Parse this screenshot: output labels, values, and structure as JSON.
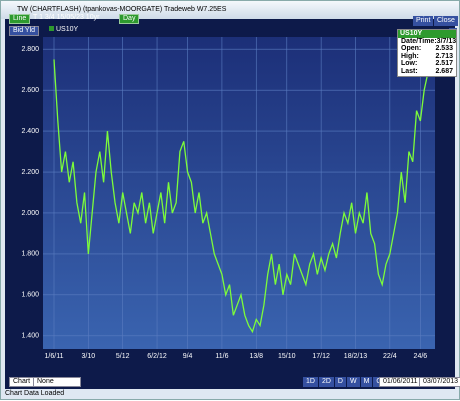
{
  "window": {
    "title": "TW (CHARTFLASH) (tpankovas-MOORGATE) Tradeweb W7.25ES"
  },
  "toolbar": {
    "style": "Line",
    "instrument": "T 1 3/4 15/05/23 10yr",
    "period": "Day",
    "print": "Print",
    "close": "Close",
    "help": "?",
    "field": "Bid Yld"
  },
  "info": {
    "title": "US10Y",
    "rows": [
      {
        "label": "Date/Time:",
        "value": "3/7/13"
      },
      {
        "label": "Open:",
        "value": "2.533"
      },
      {
        "label": "High:",
        "value": "2.713"
      },
      {
        "label": "Low:",
        "value": "2.517"
      },
      {
        "label": "Last:",
        "value": "2.687"
      }
    ]
  },
  "bottom": {
    "chart": "Chart",
    "overlay": "None",
    "buttons": [
      "1D",
      "2D",
      "D",
      "W",
      "M",
      "Q"
    ],
    "from": "01/06/2011",
    "to": "03/07/2013"
  },
  "status": "Chart Data Loaded",
  "chart_data": {
    "type": "line",
    "series": [
      {
        "name": "US10Y",
        "color": "#7CFC3A",
        "values": [
          2.75,
          2.45,
          2.2,
          2.3,
          2.15,
          2.25,
          2.05,
          1.95,
          2.1,
          1.8,
          2.0,
          2.2,
          2.3,
          2.15,
          2.4,
          2.2,
          2.05,
          1.95,
          2.1,
          2.0,
          1.9,
          2.05,
          2.0,
          2.1,
          1.95,
          2.05,
          1.9,
          2.0,
          2.1,
          1.95,
          2.15,
          2.0,
          2.05,
          2.3,
          2.35,
          2.2,
          2.15,
          2.0,
          2.1,
          1.95,
          2.0,
          1.9,
          1.8,
          1.75,
          1.7,
          1.6,
          1.65,
          1.5,
          1.55,
          1.6,
          1.5,
          1.45,
          1.42,
          1.48,
          1.45,
          1.55,
          1.7,
          1.8,
          1.65,
          1.75,
          1.6,
          1.7,
          1.65,
          1.8,
          1.75,
          1.7,
          1.65,
          1.75,
          1.8,
          1.7,
          1.78,
          1.72,
          1.8,
          1.85,
          1.78,
          1.9,
          2.0,
          1.95,
          2.05,
          1.9,
          2.0,
          1.95,
          2.1,
          1.9,
          1.85,
          1.7,
          1.65,
          1.75,
          1.8,
          1.9,
          2.0,
          2.2,
          2.05,
          2.3,
          2.25,
          2.5,
          2.45,
          2.6,
          2.687
        ]
      }
    ],
    "xlim": [
      0,
      98
    ],
    "xticks": [
      {
        "value": 0,
        "label": "1/6/11"
      },
      {
        "value": 9,
        "label": "3/10"
      },
      {
        "value": 18,
        "label": "5/12"
      },
      {
        "value": 27,
        "label": "6/2/12"
      },
      {
        "value": 35,
        "label": "9/4"
      },
      {
        "value": 44,
        "label": "11/6"
      },
      {
        "value": 53,
        "label": "13/8"
      },
      {
        "value": 61,
        "label": "15/10"
      },
      {
        "value": 70,
        "label": "17/12"
      },
      {
        "value": 79,
        "label": "18/2/13"
      },
      {
        "value": 88,
        "label": "22/4"
      },
      {
        "value": 96,
        "label": "24/6"
      }
    ],
    "ylim": [
      1.35,
      2.85
    ],
    "yticks": [
      {
        "value": 1.4,
        "label": "1.400"
      },
      {
        "value": 1.6,
        "label": "1.600"
      },
      {
        "value": 1.8,
        "label": "1.800"
      },
      {
        "value": 2.0,
        "label": "2.000"
      },
      {
        "value": 2.2,
        "label": "2.200"
      },
      {
        "value": 2.4,
        "label": "2.400"
      },
      {
        "value": 2.6,
        "label": "2.600"
      },
      {
        "value": 2.8,
        "label": "2.800"
      }
    ],
    "grid": true
  }
}
